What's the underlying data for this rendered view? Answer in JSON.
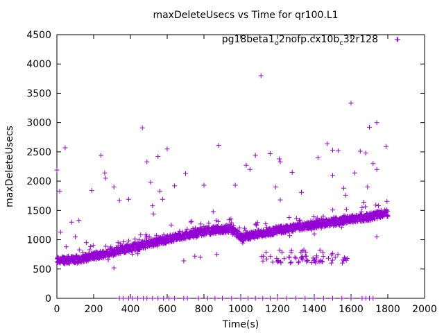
{
  "chart_data": {
    "type": "scatter",
    "title": "maxDeleteUsecs vs Time for qr100.L1",
    "xlabel": "Time(s)",
    "ylabel": "maxDeleteUsecs",
    "xlim": [
      0,
      2000
    ],
    "ylim": [
      0,
      4500
    ],
    "xticks": [
      "0",
      "200",
      "400",
      "600",
      "800",
      "1000",
      "1200",
      "1400",
      "1600",
      "1800",
      "2000"
    ],
    "yticks": [
      "0",
      "500",
      "1000",
      "1500",
      "2000",
      "2500",
      "3000",
      "3500",
      "4000",
      "4500"
    ],
    "legend_position": "top-right",
    "grid": false,
    "marker": "+",
    "color": "#9400d3",
    "series": [
      {
        "name": "pg18beta1_o2nofp.cx10b_c32r128",
        "trend": [
          {
            "x": 0,
            "y": 650
          },
          {
            "x": 100,
            "y": 660
          },
          {
            "x": 200,
            "y": 720
          },
          {
            "x": 300,
            "y": 790
          },
          {
            "x": 400,
            "y": 860
          },
          {
            "x": 500,
            "y": 930
          },
          {
            "x": 600,
            "y": 1010
          },
          {
            "x": 700,
            "y": 1080
          },
          {
            "x": 800,
            "y": 1140
          },
          {
            "x": 940,
            "y": 1190
          },
          {
            "x": 1000,
            "y": 1040
          },
          {
            "x": 1100,
            "y": 1100
          },
          {
            "x": 1200,
            "y": 1160
          },
          {
            "x": 1300,
            "y": 1210
          },
          {
            "x": 1400,
            "y": 1260
          },
          {
            "x": 1500,
            "y": 1300
          },
          {
            "x": 1600,
            "y": 1360
          },
          {
            "x": 1700,
            "y": 1390
          },
          {
            "x": 1800,
            "y": 1460
          }
        ],
        "outliers": [
          {
            "x": 0,
            "y": 2190
          },
          {
            "x": 15,
            "y": 1830
          },
          {
            "x": 45,
            "y": 2570
          },
          {
            "x": 20,
            "y": 1130
          },
          {
            "x": 80,
            "y": 1300
          },
          {
            "x": 120,
            "y": 1330
          },
          {
            "x": 190,
            "y": 1840
          },
          {
            "x": 240,
            "y": 2440
          },
          {
            "x": 260,
            "y": 2140
          },
          {
            "x": 265,
            "y": 2050
          },
          {
            "x": 310,
            "y": 1900
          },
          {
            "x": 340,
            "y": 1670
          },
          {
            "x": 390,
            "y": 1690
          },
          {
            "x": 465,
            "y": 2910
          },
          {
            "x": 490,
            "y": 2330
          },
          {
            "x": 510,
            "y": 1980
          },
          {
            "x": 520,
            "y": 1580
          },
          {
            "x": 525,
            "y": 1440
          },
          {
            "x": 550,
            "y": 2420
          },
          {
            "x": 560,
            "y": 1830
          },
          {
            "x": 575,
            "y": 1690
          },
          {
            "x": 600,
            "y": 2550
          },
          {
            "x": 640,
            "y": 1920
          },
          {
            "x": 700,
            "y": 2130
          },
          {
            "x": 800,
            "y": 1930
          },
          {
            "x": 850,
            "y": 1480
          },
          {
            "x": 880,
            "y": 2610
          },
          {
            "x": 970,
            "y": 1930
          },
          {
            "x": 1030,
            "y": 2270
          },
          {
            "x": 1050,
            "y": 2200
          },
          {
            "x": 1080,
            "y": 2440
          },
          {
            "x": 1110,
            "y": 3800
          },
          {
            "x": 1160,
            "y": 2470
          },
          {
            "x": 1190,
            "y": 1900
          },
          {
            "x": 1210,
            "y": 2380
          },
          {
            "x": 1215,
            "y": 2330
          },
          {
            "x": 1215,
            "y": 1680
          },
          {
            "x": 1280,
            "y": 2150
          },
          {
            "x": 1330,
            "y": 1810
          },
          {
            "x": 1420,
            "y": 2400
          },
          {
            "x": 1470,
            "y": 2640
          },
          {
            "x": 1500,
            "y": 2530
          },
          {
            "x": 1530,
            "y": 2520
          },
          {
            "x": 1500,
            "y": 2100
          },
          {
            "x": 1560,
            "y": 1880
          },
          {
            "x": 1570,
            "y": 1760
          },
          {
            "x": 1600,
            "y": 3330
          },
          {
            "x": 1620,
            "y": 2140
          },
          {
            "x": 1650,
            "y": 2510
          },
          {
            "x": 1670,
            "y": 1640
          },
          {
            "x": 1680,
            "y": 2480
          },
          {
            "x": 1690,
            "y": 1900
          },
          {
            "x": 1700,
            "y": 2920
          },
          {
            "x": 1720,
            "y": 2300
          },
          {
            "x": 1740,
            "y": 3000
          },
          {
            "x": 1740,
            "y": 2200
          },
          {
            "x": 1790,
            "y": 2590
          },
          {
            "x": 1850,
            "y": 4420
          },
          {
            "x": 1740,
            "y": 1050
          },
          {
            "x": 1400,
            "y": 1100
          },
          {
            "x": 750,
            "y": 720
          },
          {
            "x": 780,
            "y": 700
          },
          {
            "x": 870,
            "y": 750
          },
          {
            "x": 690,
            "y": 640
          },
          {
            "x": 310,
            "y": 520
          },
          {
            "x": 50,
            "y": 880
          },
          {
            "x": 100,
            "y": 1050
          },
          {
            "x": 160,
            "y": 950
          }
        ],
        "low_cluster": {
          "x_start": 1100,
          "x_end": 1610,
          "y_min": 600,
          "y_max": 850
        },
        "zero_points": [
          340,
          360,
          390,
          410,
          440,
          470,
          490,
          520,
          550,
          580,
          610,
          640,
          690,
          710,
          770,
          820,
          860,
          900,
          950,
          1000,
          1040,
          1080,
          1120,
          1160,
          1200,
          1250,
          1300,
          1350,
          1400,
          1450,
          1500,
          1550,
          1600,
          1660,
          1680,
          1700,
          1720
        ]
      }
    ]
  }
}
